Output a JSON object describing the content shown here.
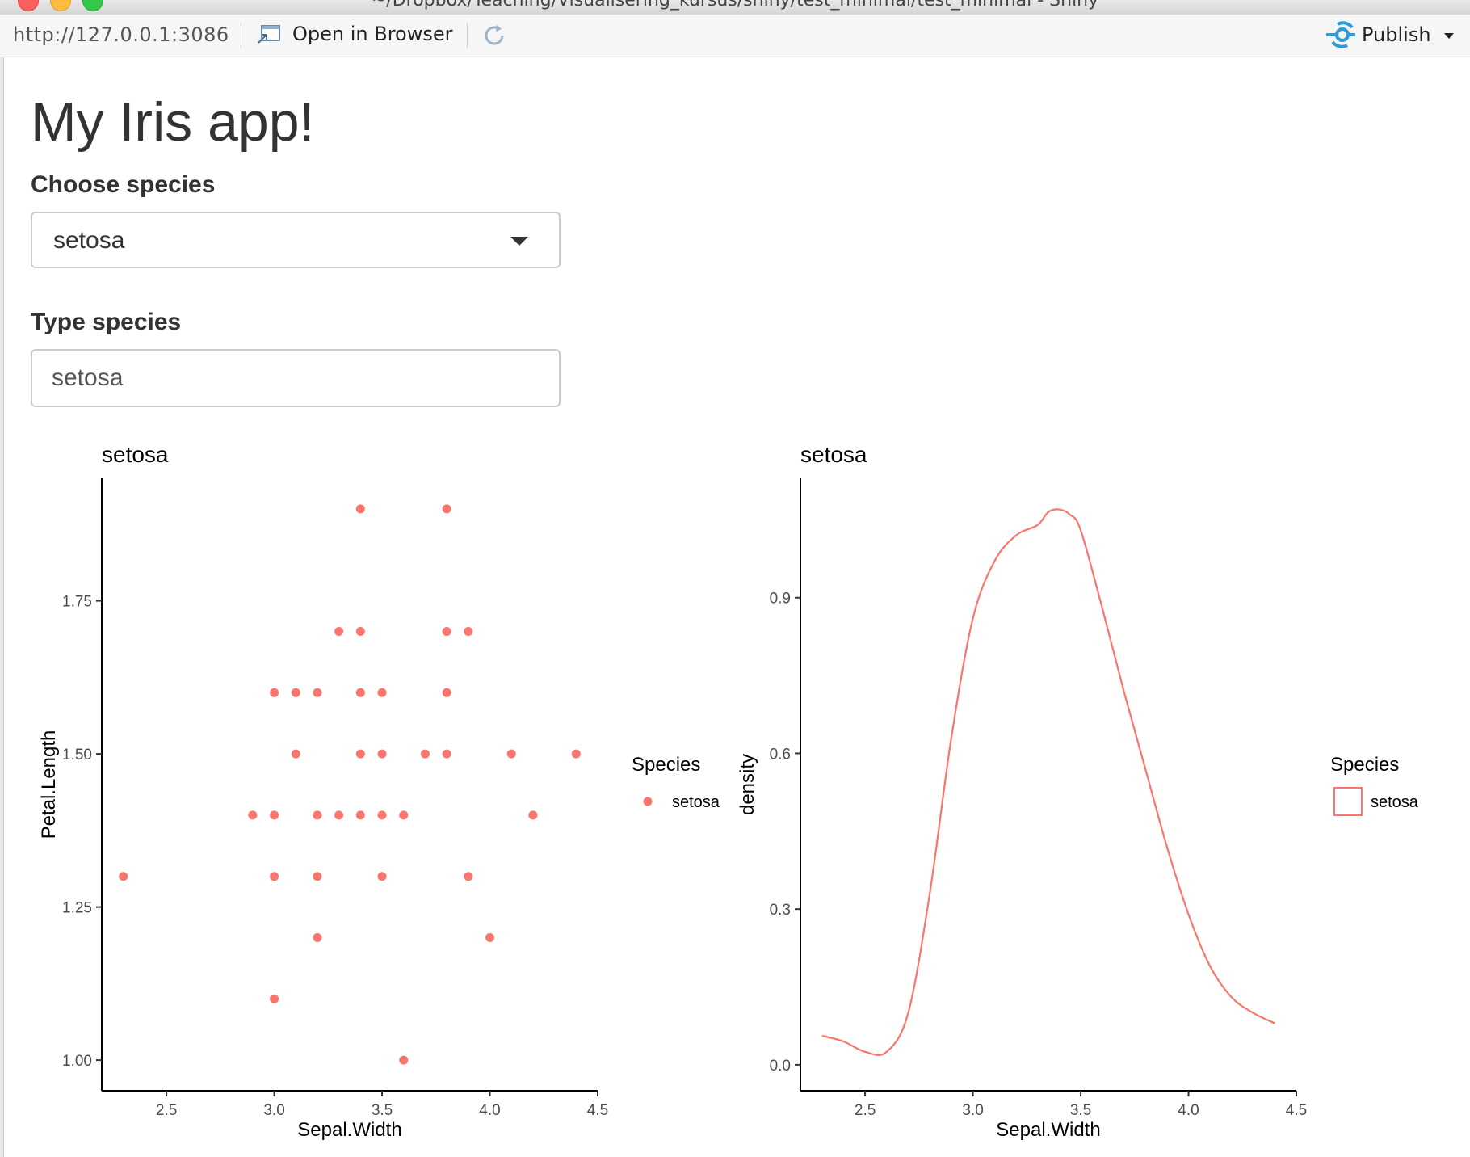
{
  "window": {
    "title": "~/Dropbox/Teaching/Visualisering_kursus/shiny/test_minimal/test_minimal - Shiny"
  },
  "toolbar": {
    "url": "http://127.0.0.1:3086",
    "open_in_browser_label": "Open in Browser",
    "refresh_icon": "refresh-icon",
    "publish_label": "Publish"
  },
  "app": {
    "title": "My Iris app!",
    "select_label": "Choose species",
    "select_value": "setosa",
    "text_label": "Type species",
    "text_value": "setosa"
  },
  "colors": {
    "series": "#f8766d",
    "axis": "#000000",
    "tick_text": "#4d4d4d"
  },
  "chart_data": [
    {
      "type": "scatter",
      "title": "setosa",
      "xlabel": "Sepal.Width",
      "ylabel": "Petal.Length",
      "xlim": [
        2.2,
        4.5
      ],
      "ylim": [
        0.95,
        1.95
      ],
      "xticks": [
        2.5,
        3.0,
        3.5,
        4.0,
        4.5
      ],
      "xtick_labels": [
        "2.5",
        "3.0",
        "3.5",
        "4.0",
        "4.5"
      ],
      "yticks": [
        1.0,
        1.25,
        1.5,
        1.75
      ],
      "ytick_labels": [
        "1.00",
        "1.25",
        "1.50",
        "1.75"
      ],
      "grid": false,
      "legend": {
        "title": "Species",
        "placement": "right",
        "entries": [
          "setosa"
        ]
      },
      "series": [
        {
          "name": "setosa",
          "points": [
            [
              3.4,
              1.9
            ],
            [
              3.8,
              1.9
            ],
            [
              3.3,
              1.7
            ],
            [
              3.4,
              1.7
            ],
            [
              3.8,
              1.7
            ],
            [
              3.9,
              1.7
            ],
            [
              3.0,
              1.6
            ],
            [
              3.1,
              1.6
            ],
            [
              3.2,
              1.6
            ],
            [
              3.4,
              1.6
            ],
            [
              3.5,
              1.6
            ],
            [
              3.8,
              1.6
            ],
            [
              3.1,
              1.5
            ],
            [
              3.4,
              1.5
            ],
            [
              3.5,
              1.5
            ],
            [
              3.7,
              1.5
            ],
            [
              3.8,
              1.5
            ],
            [
              4.1,
              1.5
            ],
            [
              4.4,
              1.5
            ],
            [
              2.9,
              1.4
            ],
            [
              3.0,
              1.4
            ],
            [
              3.2,
              1.4
            ],
            [
              3.3,
              1.4
            ],
            [
              3.4,
              1.4
            ],
            [
              3.5,
              1.4
            ],
            [
              3.6,
              1.4
            ],
            [
              4.2,
              1.4
            ],
            [
              2.3,
              1.3
            ],
            [
              3.0,
              1.3
            ],
            [
              3.2,
              1.3
            ],
            [
              3.5,
              1.3
            ],
            [
              3.9,
              1.3
            ],
            [
              3.2,
              1.2
            ],
            [
              4.0,
              1.2
            ],
            [
              3.0,
              1.1
            ],
            [
              3.6,
              1.0
            ]
          ]
        }
      ]
    },
    {
      "type": "line",
      "title": "setosa",
      "xlabel": "Sepal.Width",
      "ylabel": "density",
      "xlim": [
        2.2,
        4.5
      ],
      "ylim": [
        -0.05,
        1.13
      ],
      "xticks": [
        2.5,
        3.0,
        3.5,
        4.0,
        4.5
      ],
      "xtick_labels": [
        "2.5",
        "3.0",
        "3.5",
        "4.0",
        "4.5"
      ],
      "yticks": [
        0.0,
        0.3,
        0.6,
        0.9
      ],
      "ytick_labels": [
        "0.0",
        "0.3",
        "0.6",
        "0.9"
      ],
      "grid": false,
      "legend": {
        "title": "Species",
        "placement": "right",
        "entries": [
          "setosa"
        ]
      },
      "series": [
        {
          "name": "setosa",
          "x": [
            2.3,
            2.4,
            2.5,
            2.6,
            2.7,
            2.8,
            2.9,
            3.0,
            3.1,
            3.2,
            3.3,
            3.35,
            3.4,
            3.45,
            3.5,
            3.6,
            3.7,
            3.8,
            3.9,
            4.0,
            4.1,
            4.2,
            4.3,
            4.4
          ],
          "y": [
            0.056,
            0.045,
            0.025,
            0.025,
            0.1,
            0.33,
            0.63,
            0.86,
            0.97,
            1.02,
            1.04,
            1.065,
            1.07,
            1.06,
            1.03,
            0.88,
            0.72,
            0.57,
            0.42,
            0.29,
            0.19,
            0.13,
            0.1,
            0.08
          ]
        }
      ]
    }
  ]
}
